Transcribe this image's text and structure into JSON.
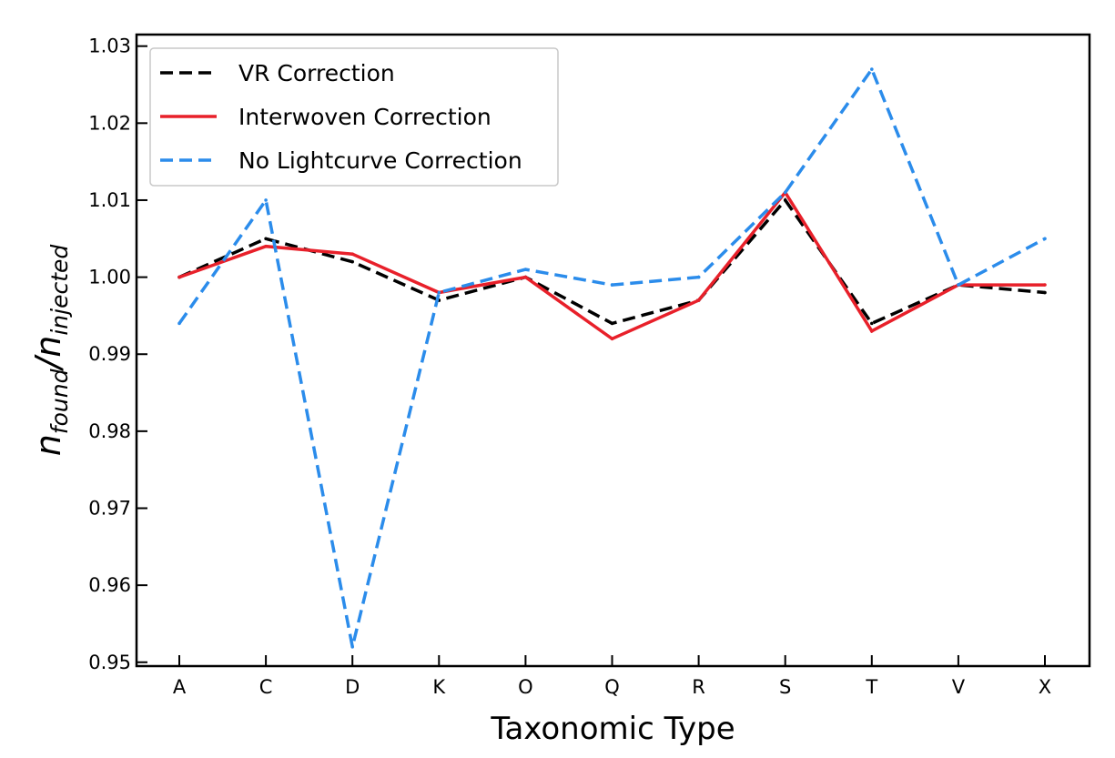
{
  "chart_data": {
    "type": "line",
    "title": "",
    "xlabel": "Taxonomic Type",
    "ylabel": "n_found/n_injected",
    "ylabel_parts": {
      "base1": "n",
      "sub1": "found",
      "slash": "/",
      "base2": "n",
      "sub2": "injected"
    },
    "categories": [
      "A",
      "C",
      "D",
      "K",
      "O",
      "Q",
      "R",
      "S",
      "T",
      "V",
      "X"
    ],
    "ylim": [
      0.9495,
      1.0315
    ],
    "yticks": [
      "0.95",
      "0.96",
      "0.97",
      "0.98",
      "0.99",
      "1.00",
      "1.01",
      "1.02",
      "1.03"
    ],
    "grid": false,
    "legend_position": "top-left",
    "series": [
      {
        "name": "VR Correction",
        "color": "#000000",
        "style": "dashed",
        "values": [
          1.0,
          1.005,
          1.002,
          0.997,
          1.0,
          0.994,
          0.997,
          1.01,
          0.994,
          0.999,
          0.998
        ]
      },
      {
        "name": "Interwoven Correction",
        "color": "#e8202a",
        "style": "solid",
        "values": [
          1.0,
          1.004,
          1.003,
          0.998,
          1.0,
          0.992,
          0.997,
          1.011,
          0.993,
          0.999,
          0.999
        ]
      },
      {
        "name": "No Lightcurve Correction",
        "color": "#2b8ceb",
        "style": "dashed",
        "values": [
          0.994,
          1.01,
          0.952,
          0.998,
          1.001,
          0.999,
          1.0,
          1.011,
          1.027,
          0.999,
          1.005
        ]
      }
    ]
  }
}
